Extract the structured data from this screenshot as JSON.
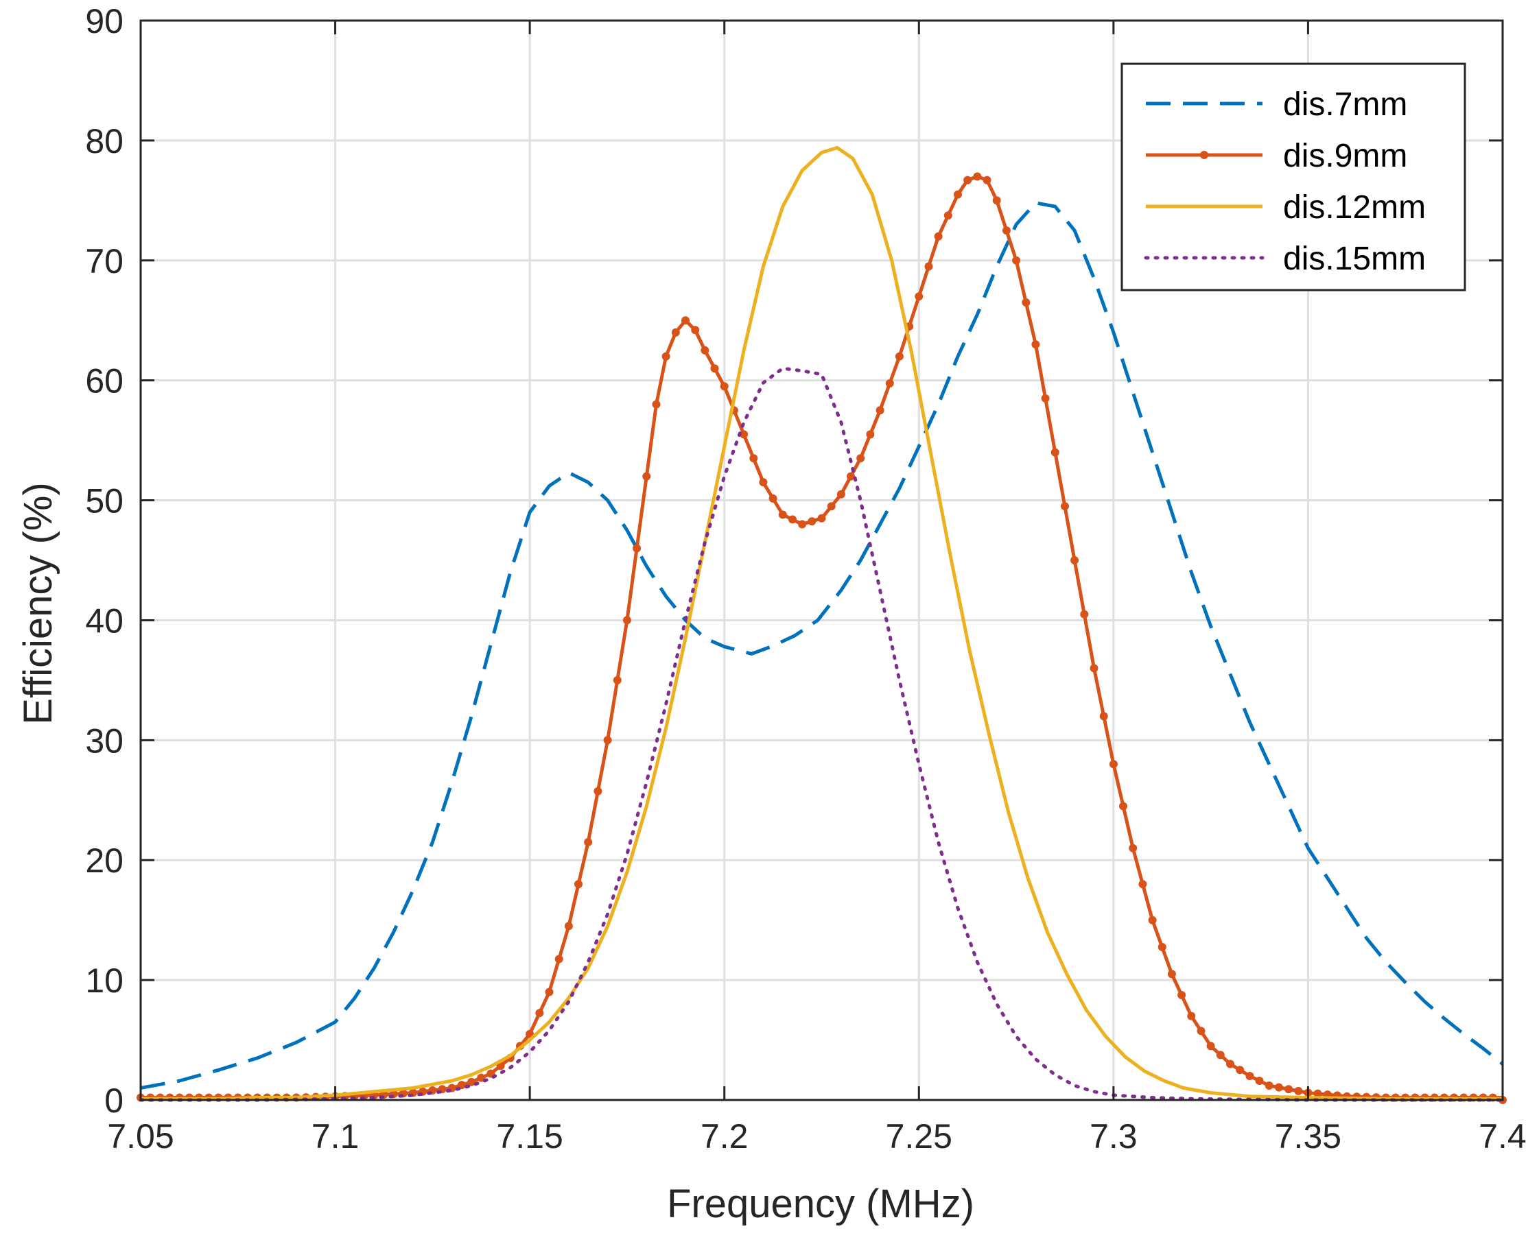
{
  "chart_data": {
    "type": "line",
    "title": "",
    "xlabel": "Frequency (MHz)",
    "ylabel": "Efficiency (%)",
    "xlim": [
      7.05,
      7.4
    ],
    "ylim": [
      0,
      90
    ],
    "grid": true,
    "legend_position": "top-right",
    "x_ticks": [
      7.05,
      7.1,
      7.15,
      7.2,
      7.25,
      7.3,
      7.35,
      7.4
    ],
    "x_tick_labels": [
      "7.05",
      "7.1",
      "7.15",
      "7.2",
      "7.25",
      "7.3",
      "7.35",
      "7.4"
    ],
    "y_ticks": [
      0,
      10,
      20,
      30,
      40,
      50,
      60,
      70,
      80,
      90
    ],
    "y_tick_labels": [
      "0",
      "10",
      "20",
      "30",
      "40",
      "50",
      "60",
      "70",
      "80",
      "90"
    ],
    "series": [
      {
        "name": "dis.7mm",
        "style": "dashed",
        "color": "#0072BD",
        "points": [
          [
            7.05,
            1.0
          ],
          [
            7.06,
            1.6
          ],
          [
            7.07,
            2.5
          ],
          [
            7.08,
            3.5
          ],
          [
            7.09,
            4.8
          ],
          [
            7.1,
            6.5
          ],
          [
            7.105,
            8.5
          ],
          [
            7.11,
            11.0
          ],
          [
            7.115,
            14.0
          ],
          [
            7.12,
            17.5
          ],
          [
            7.125,
            21.5
          ],
          [
            7.13,
            26.5
          ],
          [
            7.135,
            32.0
          ],
          [
            7.14,
            38.0
          ],
          [
            7.145,
            44.0
          ],
          [
            7.15,
            49.0
          ],
          [
            7.155,
            51.2
          ],
          [
            7.16,
            52.3
          ],
          [
            7.165,
            51.5
          ],
          [
            7.17,
            50.0
          ],
          [
            7.175,
            47.5
          ],
          [
            7.18,
            44.5
          ],
          [
            7.185,
            42.0
          ],
          [
            7.19,
            40.0
          ],
          [
            7.195,
            38.5
          ],
          [
            7.2,
            37.8
          ],
          [
            7.207,
            37.2
          ],
          [
            7.212,
            37.8
          ],
          [
            7.218,
            38.7
          ],
          [
            7.224,
            40.0
          ],
          [
            7.23,
            42.5
          ],
          [
            7.235,
            45.0
          ],
          [
            7.24,
            48.0
          ],
          [
            7.245,
            51.0
          ],
          [
            7.25,
            54.5
          ],
          [
            7.255,
            58.0
          ],
          [
            7.26,
            62.0
          ],
          [
            7.265,
            65.5
          ],
          [
            7.27,
            69.5
          ],
          [
            7.275,
            73.0
          ],
          [
            7.28,
            74.8
          ],
          [
            7.285,
            74.5
          ],
          [
            7.29,
            72.5
          ],
          [
            7.295,
            68.5
          ],
          [
            7.3,
            64.0
          ],
          [
            7.305,
            59.0
          ],
          [
            7.31,
            54.0
          ],
          [
            7.315,
            49.0
          ],
          [
            7.32,
            44.0
          ],
          [
            7.325,
            39.5
          ],
          [
            7.33,
            35.5
          ],
          [
            7.335,
            31.5
          ],
          [
            7.34,
            28.0
          ],
          [
            7.345,
            24.5
          ],
          [
            7.35,
            21.0
          ],
          [
            7.355,
            18.5
          ],
          [
            7.36,
            16.0
          ],
          [
            7.365,
            13.5
          ],
          [
            7.37,
            11.5
          ],
          [
            7.375,
            9.8
          ],
          [
            7.38,
            8.2
          ],
          [
            7.385,
            6.8
          ],
          [
            7.39,
            5.5
          ],
          [
            7.395,
            4.3
          ],
          [
            7.4,
            3.0
          ]
        ]
      },
      {
        "name": "dis.9mm",
        "style": "solid-dots",
        "color": "#D95319",
        "points": [
          [
            7.05,
            0.2
          ],
          [
            7.06,
            0.2
          ],
          [
            7.07,
            0.2
          ],
          [
            7.08,
            0.2
          ],
          [
            7.09,
            0.2
          ],
          [
            7.1,
            0.3
          ],
          [
            7.11,
            0.4
          ],
          [
            7.12,
            0.6
          ],
          [
            7.13,
            1.0
          ],
          [
            7.135,
            1.5
          ],
          [
            7.14,
            2.2
          ],
          [
            7.145,
            3.5
          ],
          [
            7.15,
            5.5
          ],
          [
            7.155,
            9.0
          ],
          [
            7.16,
            14.5
          ],
          [
            7.165,
            21.5
          ],
          [
            7.17,
            30.0
          ],
          [
            7.175,
            40.0
          ],
          [
            7.18,
            52.0
          ],
          [
            7.1825,
            58.0
          ],
          [
            7.185,
            62.0
          ],
          [
            7.1875,
            64.0
          ],
          [
            7.19,
            65.0
          ],
          [
            7.1925,
            64.2
          ],
          [
            7.195,
            62.5
          ],
          [
            7.2,
            59.5
          ],
          [
            7.205,
            55.5
          ],
          [
            7.21,
            51.5
          ],
          [
            7.215,
            48.8
          ],
          [
            7.22,
            48.0
          ],
          [
            7.225,
            48.5
          ],
          [
            7.23,
            50.5
          ],
          [
            7.235,
            53.5
          ],
          [
            7.24,
            57.5
          ],
          [
            7.245,
            62.0
          ],
          [
            7.25,
            67.0
          ],
          [
            7.255,
            72.0
          ],
          [
            7.26,
            75.5
          ],
          [
            7.2625,
            76.7
          ],
          [
            7.265,
            77.0
          ],
          [
            7.2675,
            76.7
          ],
          [
            7.27,
            75.0
          ],
          [
            7.275,
            70.0
          ],
          [
            7.28,
            63.0
          ],
          [
            7.285,
            54.0
          ],
          [
            7.29,
            45.0
          ],
          [
            7.295,
            36.0
          ],
          [
            7.3,
            28.0
          ],
          [
            7.305,
            21.0
          ],
          [
            7.31,
            15.0
          ],
          [
            7.315,
            10.5
          ],
          [
            7.32,
            7.0
          ],
          [
            7.325,
            4.5
          ],
          [
            7.33,
            3.0
          ],
          [
            7.335,
            2.0
          ],
          [
            7.34,
            1.2
          ],
          [
            7.35,
            0.6
          ],
          [
            7.36,
            0.3
          ],
          [
            7.37,
            0.2
          ],
          [
            7.38,
            0.2
          ],
          [
            7.39,
            0.2
          ],
          [
            7.4,
            0.2
          ]
        ]
      },
      {
        "name": "dis.12mm",
        "style": "solid",
        "color": "#EDB120",
        "points": [
          [
            7.05,
            0.1
          ],
          [
            7.06,
            0.1
          ],
          [
            7.07,
            0.1
          ],
          [
            7.08,
            0.2
          ],
          [
            7.09,
            0.2
          ],
          [
            7.1,
            0.4
          ],
          [
            7.11,
            0.7
          ],
          [
            7.12,
            1.0
          ],
          [
            7.13,
            1.6
          ],
          [
            7.135,
            2.1
          ],
          [
            7.14,
            2.8
          ],
          [
            7.145,
            3.7
          ],
          [
            7.15,
            5.0
          ],
          [
            7.155,
            6.5
          ],
          [
            7.16,
            8.5
          ],
          [
            7.165,
            11.0
          ],
          [
            7.17,
            14.5
          ],
          [
            7.175,
            19.0
          ],
          [
            7.18,
            24.5
          ],
          [
            7.185,
            31.0
          ],
          [
            7.19,
            38.5
          ],
          [
            7.195,
            46.5
          ],
          [
            7.2,
            54.5
          ],
          [
            7.205,
            62.5
          ],
          [
            7.21,
            69.5
          ],
          [
            7.215,
            74.5
          ],
          [
            7.22,
            77.5
          ],
          [
            7.225,
            79.0
          ],
          [
            7.229,
            79.4
          ],
          [
            7.233,
            78.5
          ],
          [
            7.238,
            75.5
          ],
          [
            7.243,
            70.0
          ],
          [
            7.248,
            62.5
          ],
          [
            7.253,
            54.0
          ],
          [
            7.258,
            45.5
          ],
          [
            7.263,
            37.5
          ],
          [
            7.268,
            30.5
          ],
          [
            7.273,
            24.0
          ],
          [
            7.278,
            18.5
          ],
          [
            7.283,
            14.0
          ],
          [
            7.288,
            10.5
          ],
          [
            7.293,
            7.5
          ],
          [
            7.298,
            5.3
          ],
          [
            7.303,
            3.6
          ],
          [
            7.308,
            2.4
          ],
          [
            7.313,
            1.6
          ],
          [
            7.318,
            1.0
          ],
          [
            7.325,
            0.6
          ],
          [
            7.335,
            0.3
          ],
          [
            7.35,
            0.2
          ],
          [
            7.37,
            0.1
          ],
          [
            7.4,
            0.1
          ]
        ]
      },
      {
        "name": "dis.15mm",
        "style": "dotted",
        "color": "#7E2F8E",
        "points": [
          [
            7.05,
            0.0
          ],
          [
            7.08,
            0.0
          ],
          [
            7.1,
            0.1
          ],
          [
            7.11,
            0.2
          ],
          [
            7.12,
            0.4
          ],
          [
            7.13,
            0.8
          ],
          [
            7.135,
            1.2
          ],
          [
            7.14,
            1.8
          ],
          [
            7.145,
            2.7
          ],
          [
            7.15,
            4.0
          ],
          [
            7.155,
            5.8
          ],
          [
            7.16,
            8.2
          ],
          [
            7.165,
            11.5
          ],
          [
            7.17,
            15.5
          ],
          [
            7.175,
            20.5
          ],
          [
            7.18,
            26.5
          ],
          [
            7.185,
            33.0
          ],
          [
            7.19,
            40.0
          ],
          [
            7.195,
            46.5
          ],
          [
            7.2,
            52.0
          ],
          [
            7.205,
            56.5
          ],
          [
            7.21,
            59.8
          ],
          [
            7.215,
            61.0
          ],
          [
            7.22,
            60.8
          ],
          [
            7.225,
            60.5
          ],
          [
            7.23,
            56.5
          ],
          [
            7.235,
            50.0
          ],
          [
            7.24,
            42.5
          ],
          [
            7.245,
            35.0
          ],
          [
            7.25,
            28.0
          ],
          [
            7.255,
            21.5
          ],
          [
            7.26,
            16.0
          ],
          [
            7.265,
            11.5
          ],
          [
            7.27,
            8.0
          ],
          [
            7.275,
            5.3
          ],
          [
            7.28,
            3.4
          ],
          [
            7.285,
            2.1
          ],
          [
            7.29,
            1.2
          ],
          [
            7.295,
            0.7
          ],
          [
            7.3,
            0.4
          ],
          [
            7.31,
            0.2
          ],
          [
            7.32,
            0.1
          ],
          [
            7.35,
            0.0
          ],
          [
            7.4,
            0.0
          ]
        ]
      }
    ]
  }
}
